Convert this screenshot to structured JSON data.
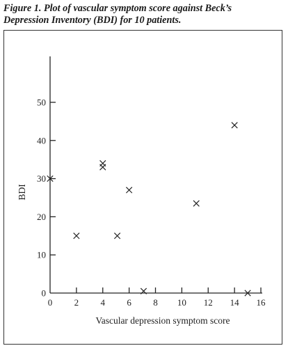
{
  "figure": {
    "caption_line1": "Figure 1. Plot of vascular symptom score against Beck’s",
    "caption_line2": "Depression Inventory (BDI) for 10 patients."
  },
  "chart_data": {
    "type": "scatter",
    "title": "",
    "xlabel": "Vascular depression symptom score",
    "ylabel": "BDI",
    "xlim": [
      0,
      16
    ],
    "ylim": [
      0,
      50
    ],
    "x_ticks": [
      0,
      2,
      4,
      6,
      8,
      10,
      12,
      14,
      16
    ],
    "y_ticks": [
      0,
      10,
      20,
      30,
      40,
      50
    ],
    "marker": "x",
    "grid": false,
    "series": [
      {
        "points": [
          {
            "x": 0,
            "y": 30
          },
          {
            "x": 2,
            "y": 15
          },
          {
            "x": 4,
            "y": 34
          },
          {
            "x": 4,
            "y": 33
          },
          {
            "x": 5.1,
            "y": 15
          },
          {
            "x": 6,
            "y": 27
          },
          {
            "x": 7.1,
            "y": 0.5
          },
          {
            "x": 11.1,
            "y": 23.5
          },
          {
            "x": 14,
            "y": 44
          },
          {
            "x": 15,
            "y": 0
          }
        ]
      }
    ]
  }
}
